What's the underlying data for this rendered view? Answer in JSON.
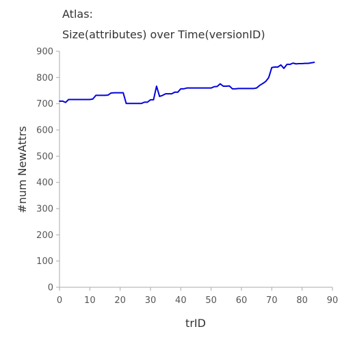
{
  "chart_data": {
    "type": "line",
    "title_lines": [
      "Atlas:",
      "Size(attributes) over Time(versionID)"
    ],
    "xlabel": "trID",
    "ylabel": "#num NewAttrs",
    "xlim": [
      0,
      90
    ],
    "ylim": [
      0,
      900
    ],
    "xticks": [
      0,
      10,
      20,
      30,
      40,
      50,
      60,
      70,
      80,
      90
    ],
    "yticks": [
      0,
      100,
      200,
      300,
      400,
      500,
      600,
      700,
      800,
      900
    ],
    "grid": false,
    "legend": "none",
    "series": [
      {
        "color": "#0000dd",
        "points": [
          [
            0,
            710
          ],
          [
            1,
            710
          ],
          [
            2,
            705
          ],
          [
            3,
            716
          ],
          [
            4,
            716
          ],
          [
            5,
            716
          ],
          [
            6,
            716
          ],
          [
            7,
            716
          ],
          [
            8,
            716
          ],
          [
            9,
            716
          ],
          [
            10,
            716
          ],
          [
            11,
            718
          ],
          [
            12,
            732
          ],
          [
            13,
            732
          ],
          [
            14,
            732
          ],
          [
            15,
            732
          ],
          [
            16,
            733
          ],
          [
            17,
            741
          ],
          [
            18,
            742
          ],
          [
            19,
            742
          ],
          [
            20,
            742
          ],
          [
            21,
            742
          ],
          [
            22,
            701
          ],
          [
            23,
            701
          ],
          [
            24,
            701
          ],
          [
            25,
            701
          ],
          [
            26,
            701
          ],
          [
            27,
            701
          ],
          [
            28,
            706
          ],
          [
            29,
            706
          ],
          [
            30,
            715
          ],
          [
            31,
            715
          ],
          [
            32,
            767
          ],
          [
            33,
            728
          ],
          [
            34,
            732
          ],
          [
            35,
            738
          ],
          [
            36,
            738
          ],
          [
            37,
            738
          ],
          [
            38,
            744
          ],
          [
            39,
            744
          ],
          [
            40,
            757
          ],
          [
            41,
            757
          ],
          [
            42,
            760
          ],
          [
            43,
            760
          ],
          [
            44,
            760
          ],
          [
            45,
            760
          ],
          [
            46,
            760
          ],
          [
            47,
            760
          ],
          [
            48,
            760
          ],
          [
            49,
            760
          ],
          [
            50,
            760
          ],
          [
            51,
            765
          ],
          [
            52,
            766
          ],
          [
            53,
            776
          ],
          [
            54,
            767
          ],
          [
            55,
            767
          ],
          [
            56,
            768
          ],
          [
            57,
            757
          ],
          [
            58,
            757
          ],
          [
            59,
            758
          ],
          [
            60,
            758
          ],
          [
            61,
            758
          ],
          [
            62,
            758
          ],
          [
            63,
            758
          ],
          [
            64,
            758
          ],
          [
            65,
            760
          ],
          [
            66,
            770
          ],
          [
            67,
            777
          ],
          [
            68,
            785
          ],
          [
            69,
            800
          ],
          [
            70,
            838
          ],
          [
            71,
            840
          ],
          [
            72,
            840
          ],
          [
            73,
            848
          ],
          [
            74,
            835
          ],
          [
            75,
            850
          ],
          [
            76,
            850
          ],
          [
            77,
            855
          ],
          [
            78,
            852
          ],
          [
            79,
            853
          ],
          [
            80,
            853
          ],
          [
            81,
            854
          ],
          [
            82,
            854
          ],
          [
            83,
            856
          ],
          [
            84,
            858
          ]
        ]
      }
    ]
  }
}
